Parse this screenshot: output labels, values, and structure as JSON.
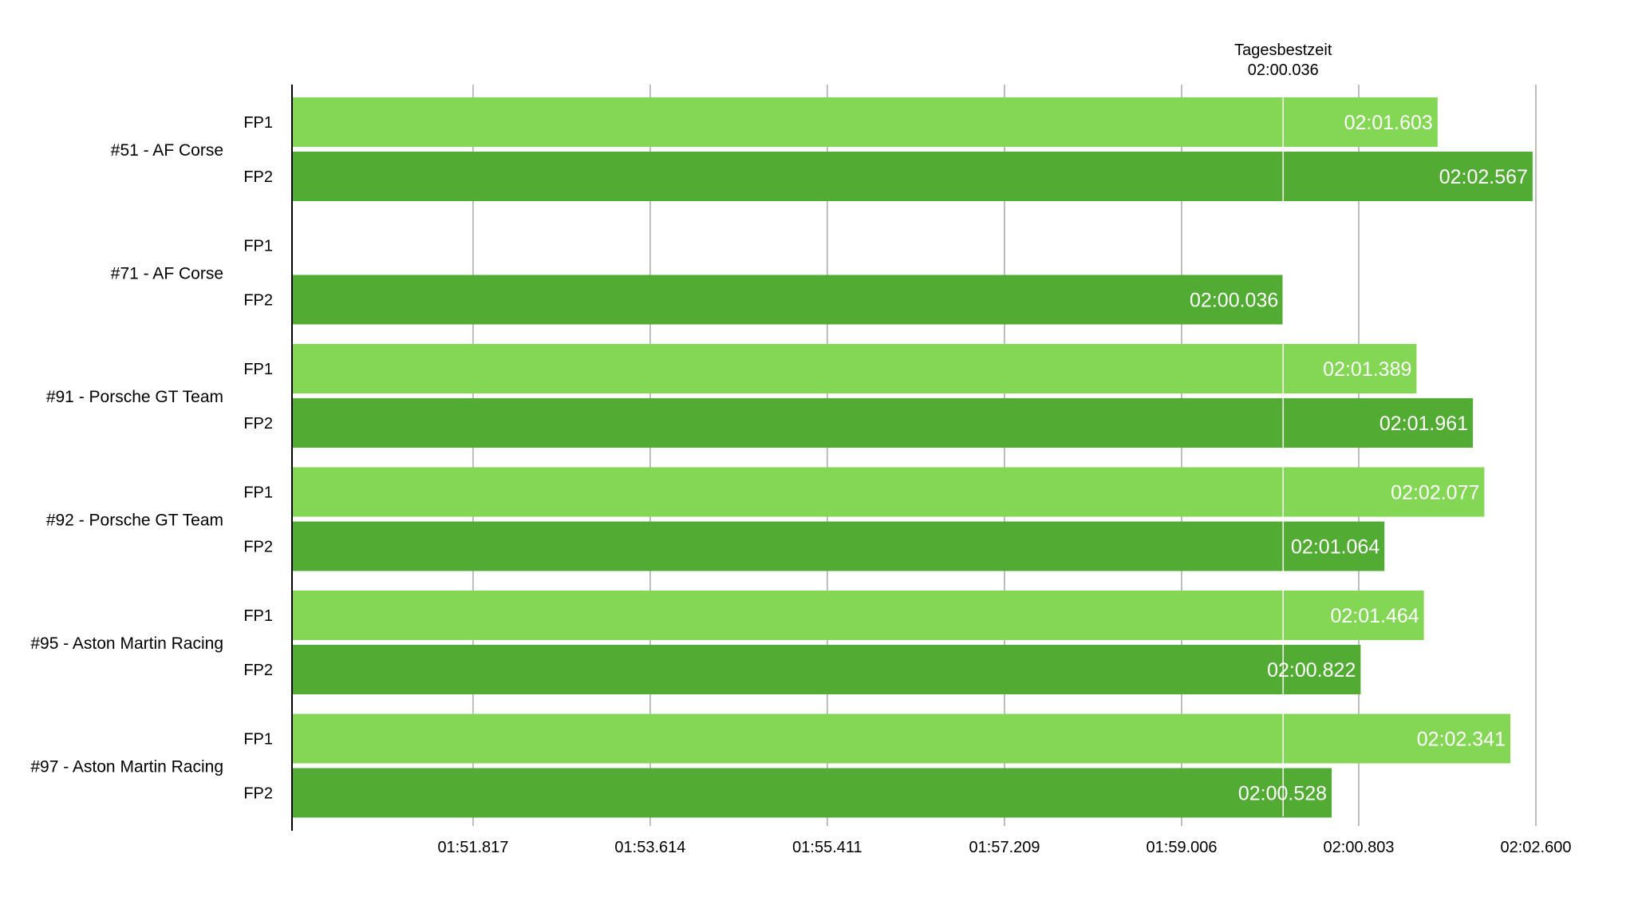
{
  "chart_data": {
    "type": "bar",
    "orientation": "horizontal",
    "categories": [
      "#51 - AF Corse",
      "#71 - AF Corse",
      "#91 - Porsche GT Team",
      "#92 - Porsche GT Team",
      "#95 - Aston Martin Racing",
      "#97 - Aston Martin Racing"
    ],
    "series": [
      {
        "name": "FP1",
        "color": "#84d655",
        "values": [
          121.603,
          null,
          121.389,
          122.077,
          121.464,
          122.341
        ],
        "labels": [
          "02:01.603",
          "",
          "02:01.389",
          "02:02.077",
          "02:01.464",
          "02:02.341"
        ]
      },
      {
        "name": "FP2",
        "color": "#52ab33",
        "values": [
          122.567,
          120.036,
          121.961,
          121.064,
          120.822,
          120.528
        ],
        "labels": [
          "02:02.567",
          "02:00.036",
          "02:01.961",
          "02:01.064",
          "02:00.822",
          "02:00.528"
        ]
      }
    ],
    "xlim": [
      109.98,
      122.6
    ],
    "ticks": [
      {
        "value": 111.817,
        "label": "01:51.817"
      },
      {
        "value": 113.614,
        "label": "01:53.614"
      },
      {
        "value": 115.411,
        "label": "01:55.411"
      },
      {
        "value": 117.209,
        "label": "01:57.209"
      },
      {
        "value": 119.006,
        "label": "01:59.006"
      },
      {
        "value": 120.803,
        "label": "02:00.803"
      },
      {
        "value": 122.6,
        "label": "02:02.600"
      }
    ],
    "reference_line": {
      "value": 120.036,
      "label_line1": "Tagesbestzeit",
      "label_line2": "02:00.036"
    },
    "grid": true
  }
}
